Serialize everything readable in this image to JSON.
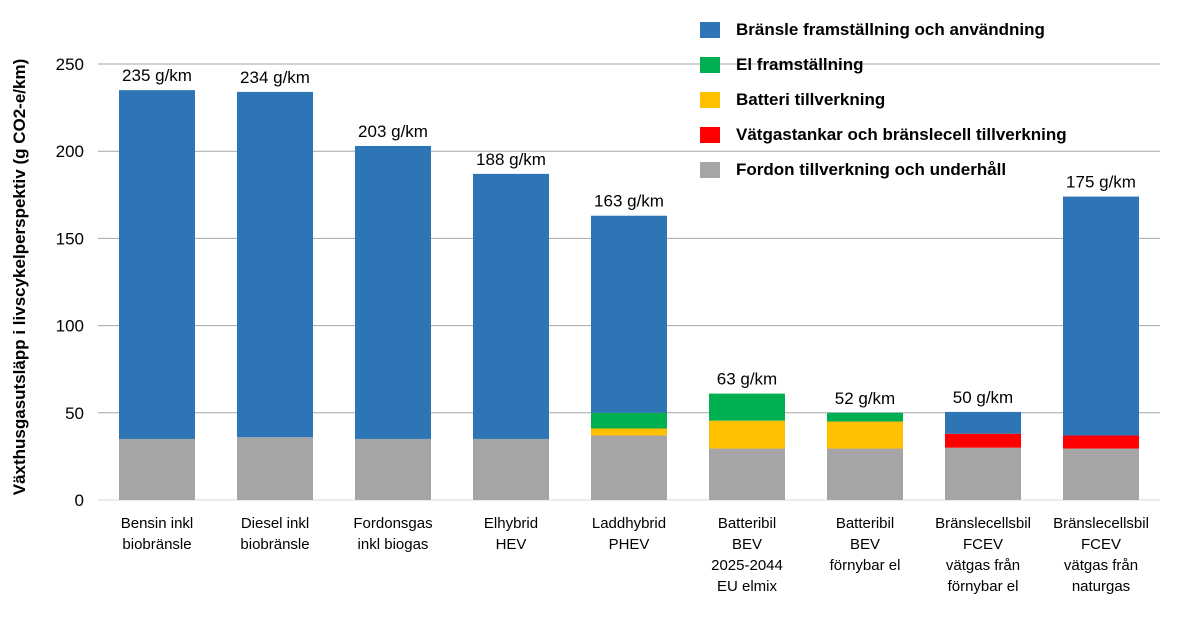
{
  "chart_data": {
    "type": "bar",
    "stacked": true,
    "ylabel": "Växthusgasutsläpp i livscykelperspektiv (g CO2-e/km)",
    "ylim": [
      0,
      250
    ],
    "yticks": [
      0,
      50,
      100,
      150,
      200,
      250
    ],
    "grid": true,
    "legend_position": "top-right",
    "categories": [
      "Bensin inkl biobränsle",
      "Diesel inkl biobränsle",
      "Fordonsgas inkl biogas",
      "Elhybrid HEV",
      "Laddhybrid PHEV",
      "Batteribil BEV 2025-2044 EU elmix",
      "Batteribil BEV förnybar el",
      "Bränslecellsbil FCEV vätgas från förnybar el",
      "Bränslecellsbil FCEV vätgas från naturgas"
    ],
    "category_lines": [
      [
        "Bensin inkl",
        "biobränsle"
      ],
      [
        "Diesel inkl",
        "biobränsle"
      ],
      [
        "Fordonsgas",
        "inkl biogas"
      ],
      [
        "Elhybrid",
        "HEV"
      ],
      [
        "Laddhybrid",
        "PHEV"
      ],
      [
        "Batteribil",
        "BEV",
        "2025-2044",
        "EU elmix"
      ],
      [
        "Batteribil",
        "BEV",
        "förnybar el"
      ],
      [
        "Bränslecellsbil",
        "FCEV",
        "vätgas från",
        "förnybar el"
      ],
      [
        "Bränslecellsbil",
        "FCEV",
        "vätgas från",
        "naturgas"
      ]
    ],
    "series": [
      {
        "name": "Fordon tillverkning och underhåll",
        "color": "#a5a5a5",
        "values": [
          35,
          36,
          35,
          35,
          37,
          29.5,
          29.5,
          30,
          29.5
        ]
      },
      {
        "name": "Vätgastankar och bränslecell tillverkning",
        "color": "#ff0000",
        "values": [
          0,
          0,
          0,
          0,
          0,
          0,
          0,
          8,
          7.5
        ]
      },
      {
        "name": "Batteri tillverkning",
        "color": "#ffc000",
        "values": [
          0,
          0,
          0,
          0,
          4,
          16,
          15.5,
          0,
          0
        ]
      },
      {
        "name": "El framställning",
        "color": "#00b050",
        "values": [
          0,
          0,
          0,
          0,
          9,
          15.5,
          5,
          0,
          0
        ]
      },
      {
        "name": "Bränsle framställning och användning",
        "color": "#2e75b6",
        "values": [
          200,
          198,
          168,
          152,
          113,
          0,
          0,
          12.5,
          137
        ]
      }
    ],
    "legend_order": [
      4,
      3,
      2,
      1,
      0
    ],
    "data_labels": [
      "235 g/km",
      "234 g/km",
      "203 g/km",
      "188 g/km",
      "163 g/km",
      "63 g/km",
      "52 g/km",
      "50 g/km",
      "175 g/km"
    ]
  }
}
